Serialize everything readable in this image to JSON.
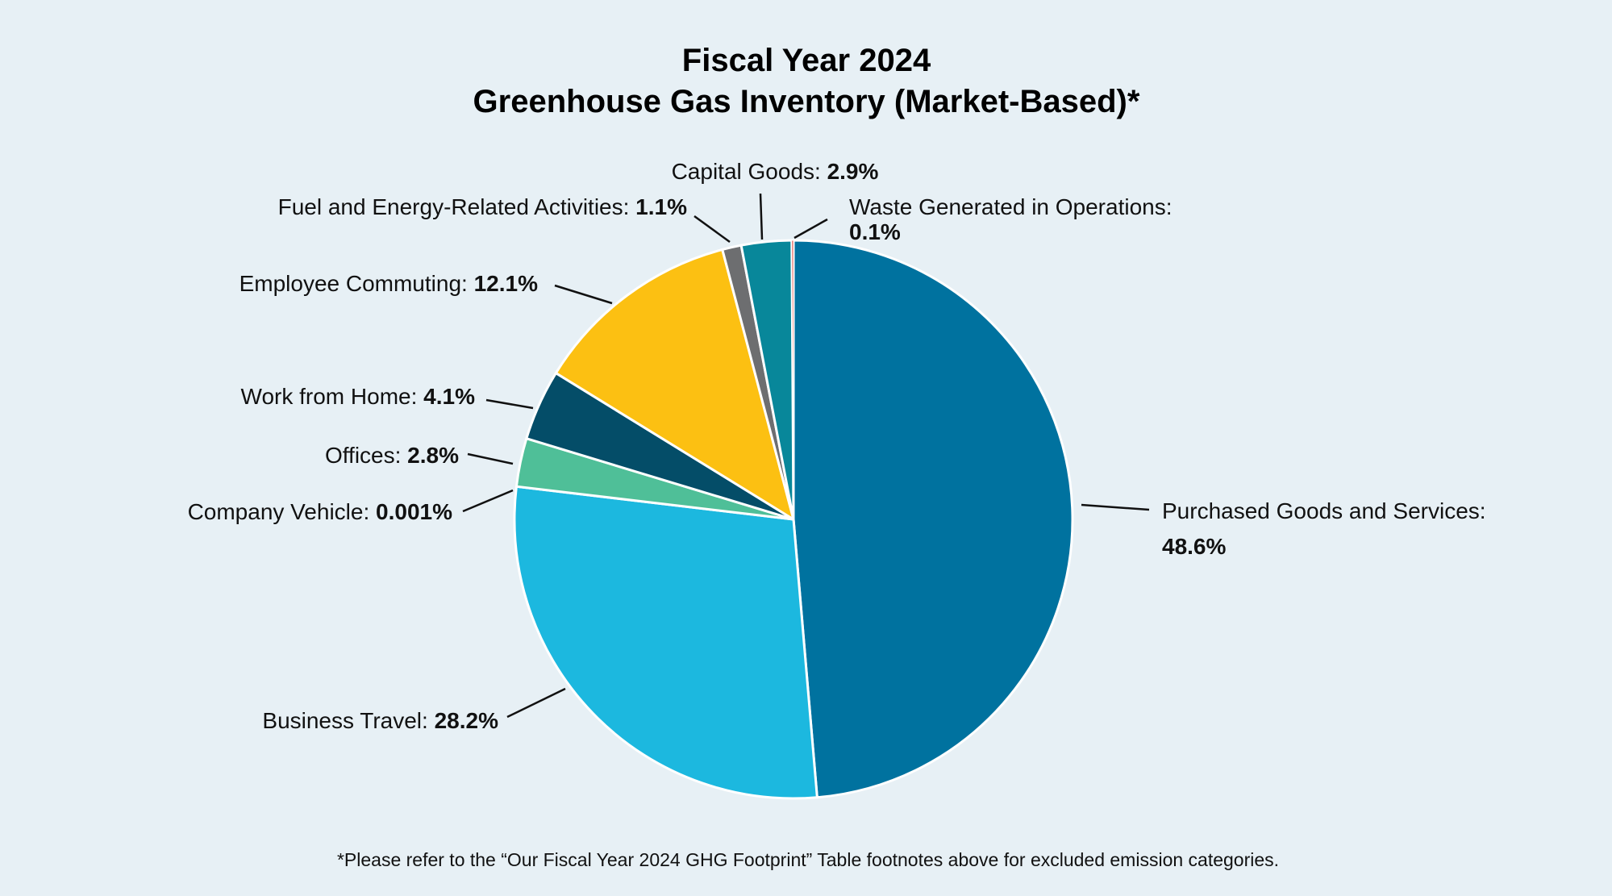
{
  "chart_data": {
    "type": "pie",
    "title": [
      "Fiscal Year 2024",
      "Greenhouse Gas Inventory (Market-Based)*"
    ],
    "footnote": "*Please refer to the “Our Fiscal Year 2024 GHG Footprint” Table footnotes above for excluded emission categories.",
    "start_angle": "12 o'clock",
    "direction": "clockwise",
    "slices": [
      {
        "label": "Purchased Goods and Services:",
        "value": 48.6,
        "value_text": "48.6%",
        "color": "#00729f"
      },
      {
        "label": "Business Travel:",
        "value": 28.2,
        "value_text": "28.2%",
        "color": "#1cb8df"
      },
      {
        "label": "Company Vehicle:",
        "value": 0.001,
        "value_text": "0.001%",
        "color": "#3aa0a0"
      },
      {
        "label": "Offices:",
        "value": 2.8,
        "value_text": "2.8%",
        "color": "#4fbf98"
      },
      {
        "label": "Work from Home:",
        "value": 4.1,
        "value_text": "4.1%",
        "color": "#044d68"
      },
      {
        "label": "Employee Commuting:",
        "value": 12.1,
        "value_text": "12.1%",
        "color": "#fcc012"
      },
      {
        "label": "Fuel and Energy-Related Activities:",
        "value": 1.1,
        "value_text": "1.1%",
        "color": "#6d6e70"
      },
      {
        "label": "Capital Goods:",
        "value": 2.9,
        "value_text": "2.9%",
        "color": "#08879a"
      },
      {
        "label": "Waste Generated in Operations:",
        "value": 0.1,
        "value_text": "0.1%",
        "color": "#e0524a"
      }
    ]
  }
}
